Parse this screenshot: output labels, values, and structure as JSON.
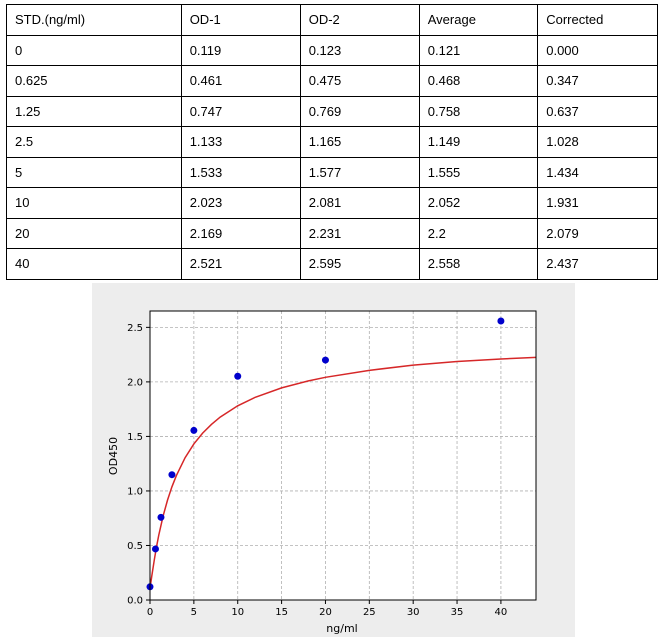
{
  "table": {
    "headers": [
      "STD.(ng/ml)",
      "OD-1",
      "OD-2",
      "Average",
      "Corrected"
    ],
    "rows": [
      [
        "0",
        "0.119",
        "0.123",
        "0.121",
        "0.000"
      ],
      [
        "0.625",
        "0.461",
        "0.475",
        "0.468",
        "0.347"
      ],
      [
        "1.25",
        "0.747",
        "0.769",
        "0.758",
        "0.637"
      ],
      [
        "2.5",
        "1.133",
        "1.165",
        "1.149",
        "1.028"
      ],
      [
        "5",
        "1.533",
        "1.577",
        "1.555",
        "1.434"
      ],
      [
        "10",
        "2.023",
        "2.081",
        "2.052",
        "1.931"
      ],
      [
        "20",
        "2.169",
        "2.231",
        "2.2",
        "2.079"
      ],
      [
        "40",
        "2.521",
        "2.595",
        "2.558",
        "2.437"
      ]
    ]
  },
  "chart_data": {
    "type": "scatter",
    "xlabel": "ng/ml",
    "ylabel": "OD450",
    "xlim": [
      0,
      44
    ],
    "ylim": [
      0,
      2.65
    ],
    "xticks": [
      0,
      5,
      10,
      15,
      20,
      25,
      30,
      35,
      40
    ],
    "yticks": [
      0.0,
      0.5,
      1.0,
      1.5,
      2.0,
      2.5
    ],
    "xtick_labels": [
      "0",
      "5",
      "10",
      "15",
      "20",
      "25",
      "30",
      "35",
      "40"
    ],
    "ytick_labels": [
      "0.0",
      "0.5",
      "1.0",
      "1.5",
      "2.0",
      "2.5"
    ],
    "grid": true,
    "points": {
      "x": [
        0,
        0.625,
        1.25,
        2.5,
        5,
        10,
        20,
        40
      ],
      "y": [
        0.121,
        0.468,
        0.758,
        1.149,
        1.555,
        2.052,
        2.2,
        2.558
      ]
    },
    "fit_curve": {
      "x": [
        0,
        0.2,
        0.5,
        0.75,
        1,
        1.5,
        2,
        2.5,
        3,
        4,
        5,
        6,
        7,
        8,
        10,
        12,
        15,
        18,
        20,
        25,
        30,
        35,
        40,
        44
      ],
      "y": [
        0.107,
        0.218,
        0.373,
        0.49,
        0.595,
        0.772,
        0.917,
        1.038,
        1.14,
        1.305,
        1.431,
        1.53,
        1.61,
        1.677,
        1.781,
        1.859,
        1.945,
        2.008,
        2.042,
        2.106,
        2.154,
        2.187,
        2.21,
        2.225
      ]
    },
    "colors": {
      "points": "#0000cc",
      "fit_curve": "#d62728",
      "grid": "#b0b0b0",
      "plot_background": "#ffffff",
      "panel_background": "#ededed"
    }
  }
}
